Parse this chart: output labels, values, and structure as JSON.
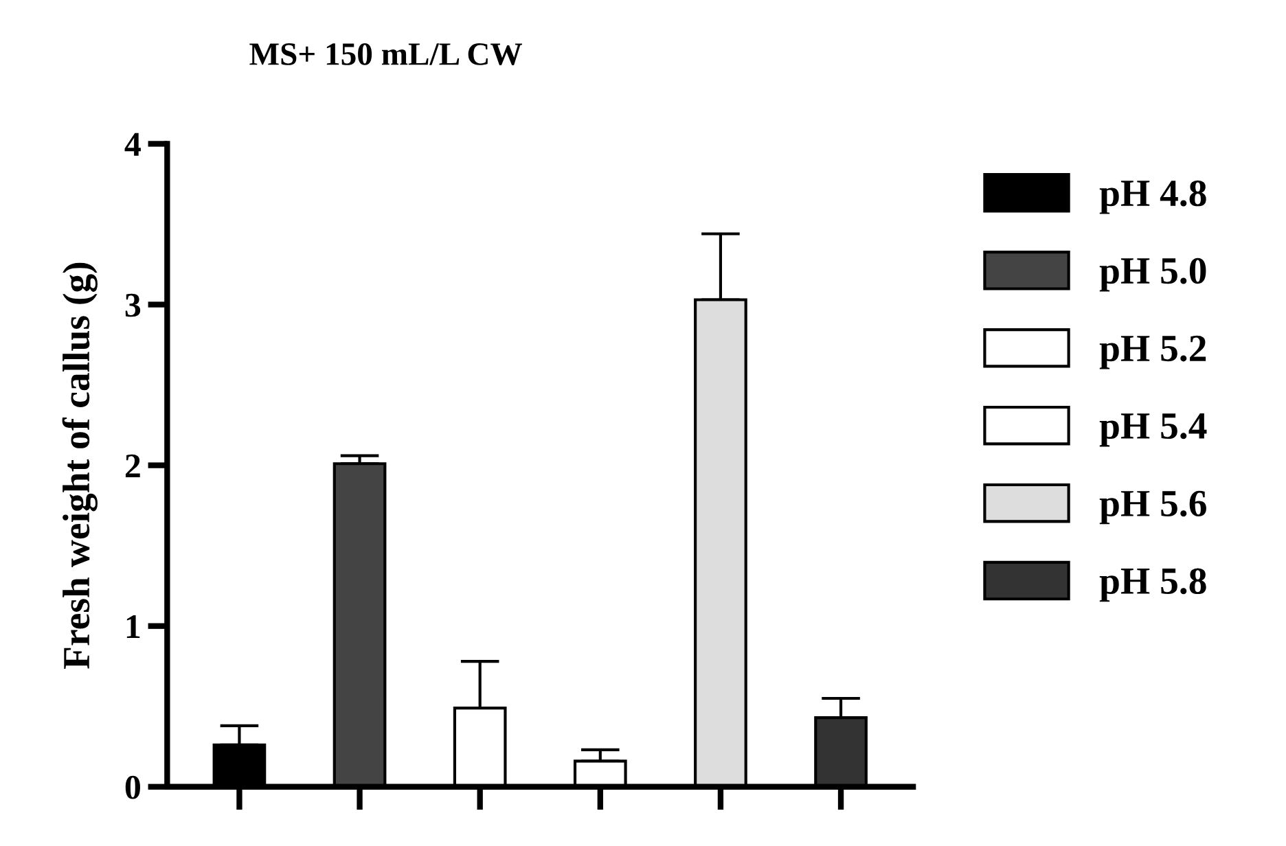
{
  "chart_data": {
    "type": "bar",
    "title": "MS+ 150 mL/L CW",
    "ylabel": "Fresh weight of callus (g)",
    "categories": [
      null,
      null,
      null,
      null,
      null,
      null
    ],
    "series": [
      {
        "name": "pH 4.8",
        "color": "#000000",
        "values": [
          0.26,
          null,
          null,
          null,
          null,
          null
        ],
        "errors": [
          [
            0.26,
            0.38
          ],
          null,
          null,
          null,
          null,
          null
        ]
      },
      {
        "name": "pH 5.0",
        "color": "#444444",
        "values": [
          null,
          2.01,
          null,
          null,
          null,
          null
        ],
        "errors": [
          null,
          [
            2.01,
            2.06
          ],
          null,
          null,
          null,
          null
        ]
      },
      {
        "name": "pH 5.2",
        "color": "#ffffff",
        "values": [
          null,
          null,
          0.49,
          null,
          null,
          null
        ],
        "errors": [
          null,
          null,
          [
            0.49,
            0.78
          ],
          null,
          null,
          null
        ]
      },
      {
        "name": "pH 5.4",
        "color": "#ffffff",
        "values": [
          null,
          null,
          null,
          0.16,
          null,
          null
        ],
        "errors": [
          null,
          null,
          null,
          [
            0.16,
            0.23
          ],
          null,
          null
        ]
      },
      {
        "name": "pH 5.6",
        "color": "#dddddd",
        "values": [
          null,
          null,
          null,
          null,
          3.03,
          null
        ],
        "errors": [
          null,
          null,
          null,
          null,
          [
            3.03,
            3.44
          ],
          null
        ]
      },
      {
        "name": "pH 5.8",
        "color": "#333333",
        "values": [
          null,
          null,
          null,
          null,
          null,
          0.43
        ],
        "errors": [
          null,
          null,
          null,
          null,
          null,
          [
            0.43,
            0.55
          ]
        ]
      }
    ],
    "grid": false,
    "ylim": [
      0,
      4
    ],
    "yticks": [
      0,
      1,
      2,
      3,
      4
    ],
    "tick_labels": "y",
    "legend": "right"
  }
}
